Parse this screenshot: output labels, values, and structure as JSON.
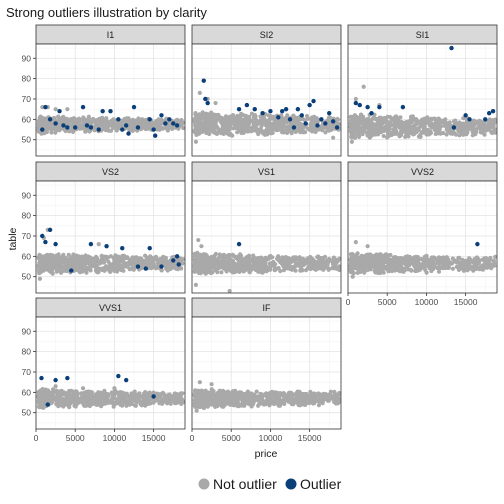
{
  "chart_data": {
    "type": "scatter",
    "title": "Strong outliers illustration by clarity",
    "xlabel": "price",
    "ylabel": "table",
    "xlim": [
      0,
      19000
    ],
    "ylim": [
      42,
      97
    ],
    "x_ticks": [
      0,
      5000,
      10000,
      15000
    ],
    "y_ticks": [
      50,
      60,
      70,
      80,
      90
    ],
    "legend": {
      "position": "bottom",
      "entries": [
        {
          "label": "Not outlier",
          "color": "#a9a9a9"
        },
        {
          "label": "Outlier",
          "color": "#0b3f7a"
        }
      ]
    },
    "panels": [
      {
        "name": "I1",
        "bulk": [
          [
            350,
            18800,
            53,
            62
          ]
        ],
        "not_outlier_extras": [
          [
            800,
            66
          ],
          [
            1500,
            66
          ],
          [
            2500,
            65
          ],
          [
            700,
            53
          ],
          [
            4000,
            65
          ]
        ],
        "outliers": [
          [
            800,
            55
          ],
          [
            1200,
            66
          ],
          [
            1800,
            60
          ],
          [
            2500,
            58
          ],
          [
            3000,
            64
          ],
          [
            3500,
            57
          ],
          [
            4000,
            56
          ],
          [
            5000,
            56
          ],
          [
            6000,
            66
          ],
          [
            6500,
            57
          ],
          [
            7000,
            56
          ],
          [
            8000,
            55
          ],
          [
            8500,
            64
          ],
          [
            9500,
            64
          ],
          [
            10500,
            60
          ],
          [
            11000,
            55
          ],
          [
            11500,
            57
          ],
          [
            11800,
            53
          ],
          [
            12500,
            66
          ],
          [
            13000,
            56
          ],
          [
            14500,
            60
          ],
          [
            15000,
            55
          ],
          [
            15200,
            52
          ],
          [
            16000,
            62
          ],
          [
            16500,
            58
          ],
          [
            17000,
            60
          ],
          [
            17500,
            58
          ],
          [
            18000,
            57
          ]
        ]
      },
      {
        "name": "SI2",
        "bulk": [
          [
            350,
            18800,
            51,
            64
          ]
        ],
        "not_outlier_extras": [
          [
            1000,
            73
          ],
          [
            2000,
            70
          ],
          [
            3000,
            68
          ],
          [
            500,
            49
          ],
          [
            18000,
            51
          ]
        ],
        "outliers": [
          [
            1500,
            79
          ],
          [
            1700,
            70
          ],
          [
            2000,
            68
          ],
          [
            6000,
            65
          ],
          [
            7000,
            67
          ],
          [
            8000,
            65
          ],
          [
            9000,
            63
          ],
          [
            10000,
            64
          ],
          [
            11000,
            61
          ],
          [
            11500,
            64
          ],
          [
            12000,
            65
          ],
          [
            12500,
            60
          ],
          [
            13000,
            56
          ],
          [
            13500,
            65
          ],
          [
            14000,
            62
          ],
          [
            14500,
            58
          ],
          [
            15000,
            67
          ],
          [
            15500,
            69
          ],
          [
            16000,
            57
          ],
          [
            16500,
            60
          ],
          [
            17000,
            58
          ],
          [
            17500,
            63
          ],
          [
            18000,
            59
          ],
          [
            18500,
            56
          ]
        ]
      },
      {
        "name": "SI1",
        "bulk": [
          [
            350,
            18800,
            50,
            63
          ]
        ],
        "not_outlier_extras": [
          [
            2000,
            76
          ],
          [
            1000,
            70
          ],
          [
            4000,
            67
          ],
          [
            500,
            49
          ]
        ],
        "outliers": [
          [
            1000,
            68
          ],
          [
            1500,
            67
          ],
          [
            2500,
            66
          ],
          [
            3000,
            63
          ],
          [
            4000,
            66
          ],
          [
            7000,
            66
          ],
          [
            13200,
            95
          ],
          [
            13500,
            56
          ],
          [
            15000,
            62
          ],
          [
            15500,
            60
          ],
          [
            17500,
            60
          ],
          [
            18000,
            63
          ],
          [
            18500,
            64
          ]
        ]
      },
      {
        "name": "VS2",
        "bulk": [
          [
            350,
            18800,
            51,
            62
          ]
        ],
        "not_outlier_extras": [
          [
            1000,
            69
          ],
          [
            1500,
            73
          ],
          [
            500,
            49
          ],
          [
            8000,
            66
          ]
        ],
        "outliers": [
          [
            800,
            70
          ],
          [
            1200,
            67
          ],
          [
            1800,
            73
          ],
          [
            2500,
            66
          ],
          [
            4500,
            53
          ],
          [
            7000,
            66
          ],
          [
            9000,
            65
          ],
          [
            11000,
            64
          ],
          [
            13000,
            55
          ],
          [
            14000,
            54
          ],
          [
            14500,
            64
          ],
          [
            16000,
            55
          ],
          [
            17500,
            58
          ],
          [
            18000,
            60
          ],
          [
            18200,
            56
          ]
        ]
      },
      {
        "name": "VS1",
        "bulk": [
          [
            350,
            18800,
            51,
            62
          ]
        ],
        "not_outlier_extras": [
          [
            800,
            68
          ],
          [
            1200,
            65
          ],
          [
            4800,
            43
          ],
          [
            500,
            46
          ]
        ],
        "outliers": [
          [
            6000,
            66
          ]
        ]
      },
      {
        "name": "VVS2",
        "bulk": [
          [
            350,
            18800,
            51,
            62
          ]
        ],
        "not_outlier_extras": [
          [
            1000,
            67
          ],
          [
            2500,
            65
          ],
          [
            600,
            50
          ]
        ],
        "outliers": [
          [
            16500,
            66
          ]
        ]
      },
      {
        "name": "VVS1",
        "bulk": [
          [
            350,
            18800,
            52,
            62
          ]
        ],
        "not_outlier_extras": [
          [
            2500,
            63
          ],
          [
            6000,
            62
          ],
          [
            10000,
            62
          ]
        ],
        "outliers": [
          [
            700,
            67
          ],
          [
            1500,
            54
          ],
          [
            2500,
            66
          ],
          [
            4000,
            67
          ],
          [
            10500,
            68
          ],
          [
            11500,
            66
          ],
          [
            15000,
            58
          ]
        ]
      },
      {
        "name": "IF",
        "bulk": [
          [
            350,
            18800,
            52,
            62
          ]
        ],
        "not_outlier_extras": [
          [
            1000,
            65
          ],
          [
            2500,
            64
          ],
          [
            600,
            51
          ]
        ],
        "outliers": []
      }
    ]
  }
}
